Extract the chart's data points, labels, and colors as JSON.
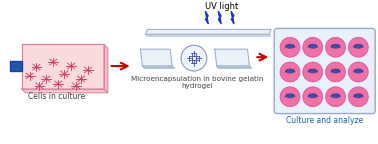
{
  "bg_color": "#ffffff",
  "uv_title": "UV light",
  "label1": "Cells in culture",
  "label2": "Microencapsulation in bovine gelatin\nhydrogel",
  "label3": "Culture and analyze",
  "label3_color": "#1a5fa8",
  "label1_color": "#444444",
  "label2_color": "#444444",
  "arrow_color": "#cc0000",
  "lightning_color": "#2233cc",
  "flask_body_fill": "#f9d8da",
  "flask_body_edge": "#e080a0",
  "flask_cap_fill": "#2255aa",
  "flask_cell_color": "#cc3355",
  "slide_top_fill": "#e8f0f8",
  "slide_top_edge": "#9ab0c8",
  "slide_bottom_fill": "#e8f0f8",
  "slide_bottom_edge": "#9ab0c8",
  "slide_right_fill": "#e8f0f8",
  "slide_right_edge": "#9ab0c8",
  "petri_fill": "#f0f4ff",
  "petri_edge": "#8899bb",
  "petri_cell_color": "#3344aa",
  "well_plate_fill": "#e8f0fa",
  "well_plate_edge": "#99aac8",
  "well_fill": "#f070a8",
  "well_edge": "#e050a0",
  "well_cell_fill": "#2244aa",
  "well_cell_line": "#ffffff"
}
